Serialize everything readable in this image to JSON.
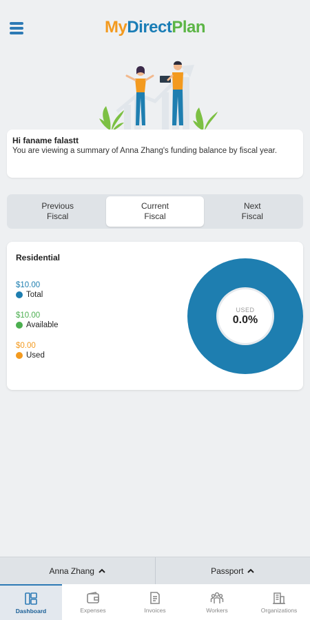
{
  "header": {
    "logo": {
      "part1": "My",
      "part2": "Direct",
      "part3": "Plan"
    },
    "menu_icon": "hamburger-menu-icon"
  },
  "greeting": {
    "title": "Hi faname falastt",
    "text": "You are viewing a summary of Anna Zhang's funding balance by fiscal year."
  },
  "fiscal_tabs": [
    {
      "line1": "Previous",
      "line2": "Fiscal",
      "active": false
    },
    {
      "line1": "Current",
      "line2": "Fiscal",
      "active": true
    },
    {
      "line1": "Next",
      "line2": "Fiscal",
      "active": false
    }
  ],
  "balance": {
    "title": "Residential",
    "total": {
      "amount": "$10.00",
      "label": "Total",
      "color": "#1e7eb0"
    },
    "available": {
      "amount": "$10.00",
      "label": "Available",
      "color": "#4caf50"
    },
    "used": {
      "amount": "$0.00",
      "label": "Used",
      "color": "#f39a1f"
    },
    "donut": {
      "label": "USED",
      "value": "0.0%",
      "ring_color": "#1e7eb0"
    }
  },
  "selectors": {
    "person": "Anna Zhang",
    "passport": "Passport"
  },
  "bottom_nav": [
    {
      "label": "Dashboard",
      "icon": "dashboard-icon",
      "active": true
    },
    {
      "label": "Expenses",
      "icon": "wallet-icon",
      "active": false
    },
    {
      "label": "Invoices",
      "icon": "invoice-icon",
      "active": false
    },
    {
      "label": "Workers",
      "icon": "workers-icon",
      "active": false
    },
    {
      "label": "Organizations",
      "icon": "organizations-icon",
      "active": false
    }
  ]
}
